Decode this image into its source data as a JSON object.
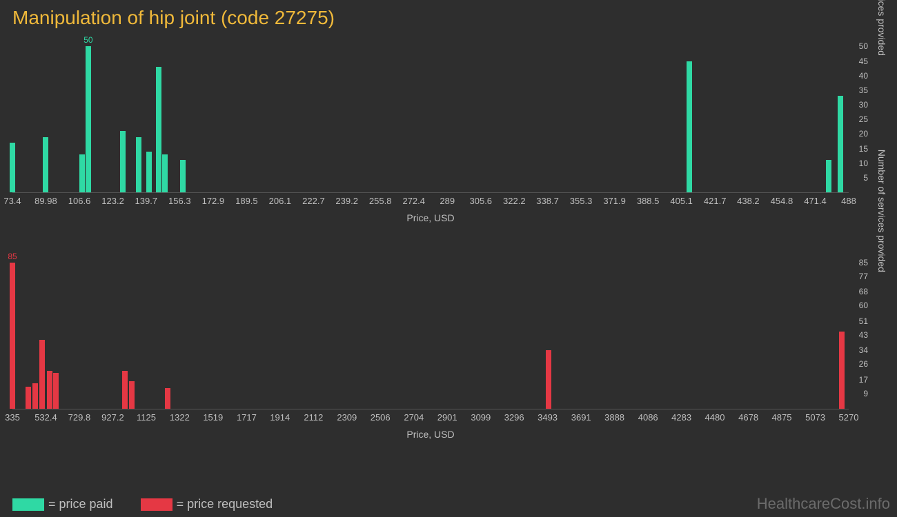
{
  "title": "Manipulation of hip joint (code 27275)",
  "background_color": "#2e2e2e",
  "title_color": "#f0b93a",
  "tick_color": "#bfbfbf",
  "chart1": {
    "type": "bar",
    "color": "#2fd9a4",
    "xlabel": "Price, USD",
    "ylabel": "Number of services provided",
    "xmin": 73.4,
    "xmax": 488,
    "xticks": [
      73.4,
      89.98,
      106.6,
      123.2,
      139.7,
      156.3,
      172.9,
      189.5,
      206.1,
      222.7,
      239.2,
      255.8,
      272.4,
      289,
      305.6,
      322.2,
      338.7,
      355.3,
      371.9,
      388.5,
      405.1,
      421.7,
      438.2,
      454.8,
      471.4,
      488
    ],
    "ymax": 52,
    "yticks": [
      5,
      10,
      15,
      20,
      25,
      30,
      35,
      40,
      45,
      50
    ],
    "bars": [
      {
        "x": 73.4,
        "y": 17
      },
      {
        "x": 89.98,
        "y": 19
      },
      {
        "x": 108.0,
        "y": 13
      },
      {
        "x": 111.0,
        "y": 50,
        "label": "50"
      },
      {
        "x": 128.0,
        "y": 21
      },
      {
        "x": 136.0,
        "y": 19
      },
      {
        "x": 141.0,
        "y": 14
      },
      {
        "x": 146.0,
        "y": 43
      },
      {
        "x": 149.0,
        "y": 13
      },
      {
        "x": 158.0,
        "y": 11
      },
      {
        "x": 409.0,
        "y": 45
      },
      {
        "x": 478.0,
        "y": 11
      },
      {
        "x": 484.0,
        "y": 33
      }
    ]
  },
  "chart2": {
    "type": "bar",
    "color": "#e53844",
    "xlabel": "Price, USD",
    "ylabel": "Number of services provided",
    "xmin": 335,
    "xmax": 5270,
    "xticks": [
      335,
      532.4,
      729.8,
      927.2,
      1125,
      1322,
      1519,
      1717,
      1914,
      2112,
      2309,
      2506,
      2704,
      2901,
      3099,
      3296,
      3493,
      3691,
      3888,
      4086,
      4283,
      4480,
      4678,
      4875,
      5073,
      5270
    ],
    "ymax": 88,
    "yticks": [
      9,
      17,
      26,
      34,
      43,
      51,
      60,
      68,
      77,
      85
    ],
    "bars": [
      {
        "x": 335,
        "y": 85,
        "label": "85"
      },
      {
        "x": 430,
        "y": 13
      },
      {
        "x": 470,
        "y": 15
      },
      {
        "x": 510,
        "y": 40
      },
      {
        "x": 555,
        "y": 22
      },
      {
        "x": 590,
        "y": 21
      },
      {
        "x": 1000,
        "y": 22
      },
      {
        "x": 1040,
        "y": 16
      },
      {
        "x": 1250,
        "y": 12
      },
      {
        "x": 3500,
        "y": 34
      },
      {
        "x": 5230,
        "y": 45
      }
    ]
  },
  "legend": {
    "paid": "= price paid",
    "requested": "= price requested"
  },
  "watermark": "HealthcareCost.info"
}
